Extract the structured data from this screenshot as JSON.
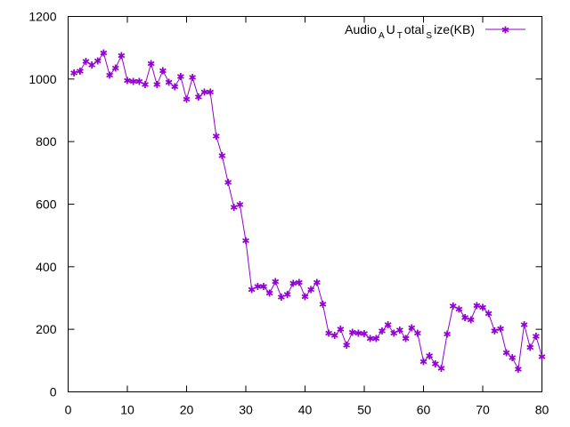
{
  "chart_data": {
    "type": "line",
    "legend_position": "top-right",
    "grid": false,
    "xlim": [
      0,
      80
    ],
    "ylim": [
      0,
      1200
    ],
    "x_ticks": [
      0,
      10,
      20,
      30,
      40,
      50,
      60,
      70,
      80
    ],
    "y_ticks": [
      0,
      200,
      400,
      600,
      800,
      1000,
      1200
    ],
    "series": [
      {
        "name": "Audio_AU_Total_Size(KB)",
        "legend_parts": [
          {
            "text": "Audio",
            "sub": false
          },
          {
            "text": "A",
            "sub": true
          },
          {
            "text": "U",
            "sub": false
          },
          {
            "text": "T",
            "sub": true
          },
          {
            "text": "otal",
            "sub": false
          },
          {
            "text": "S",
            "sub": true
          },
          {
            "text": "ize(KB)",
            "sub": false
          }
        ],
        "color": "#9400d3",
        "x": [
          1,
          2,
          3,
          4,
          5,
          6,
          7,
          8,
          9,
          10,
          11,
          12,
          13,
          14,
          15,
          16,
          17,
          18,
          19,
          20,
          21,
          22,
          23,
          24,
          25,
          26,
          27,
          28,
          29,
          30,
          31,
          32,
          33,
          34,
          35,
          36,
          37,
          38,
          39,
          40,
          41,
          42,
          43,
          44,
          45,
          46,
          47,
          48,
          49,
          50,
          51,
          52,
          53,
          54,
          55,
          56,
          57,
          58,
          59,
          60,
          61,
          62,
          63,
          64,
          65,
          66,
          67,
          68,
          69,
          70,
          71,
          72,
          73,
          74,
          75,
          76,
          77,
          78,
          79,
          80
        ],
        "values": [
          1020,
          1025,
          1057,
          1045,
          1058,
          1083,
          1013,
          1035,
          1075,
          995,
          993,
          993,
          982,
          1050,
          982,
          1027,
          990,
          975,
          1008,
          935,
          1005,
          942,
          958,
          958,
          818,
          755,
          670,
          590,
          598,
          483,
          327,
          337,
          337,
          316,
          352,
          303,
          311,
          347,
          350,
          304,
          327,
          350,
          280,
          187,
          180,
          200,
          150,
          190,
          188,
          186,
          170,
          170,
          195,
          214,
          188,
          198,
          170,
          205,
          188,
          97,
          115,
          90,
          75,
          185,
          275,
          265,
          238,
          230,
          276,
          270,
          250,
          195,
          202,
          125,
          109,
          73,
          215,
          142,
          178,
          113
        ]
      }
    ]
  }
}
